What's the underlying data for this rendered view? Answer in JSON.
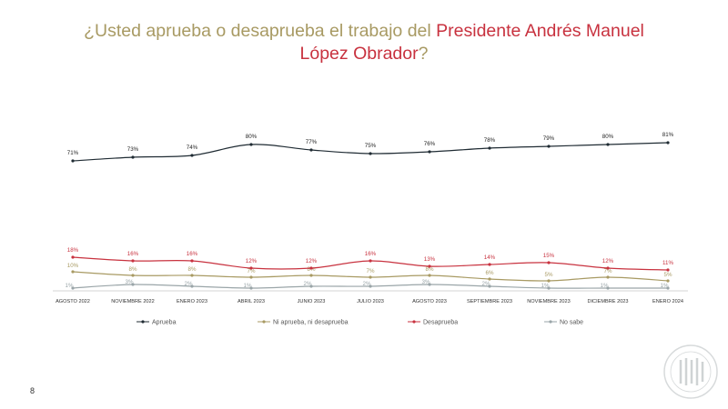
{
  "title": {
    "part1": "¿Usted aprueba o desaprueba el trabajo del ",
    "accent_line1": "Presidente Andrés Manuel",
    "accent_line2": "López Obrador",
    "end": "?"
  },
  "page_number": "8",
  "colors": {
    "title": "#a89a63",
    "accent": "#c8323f",
    "aprueba": "#1f2b33",
    "ni": "#a89a63",
    "desaprueba": "#c8323f",
    "nosabe": "#9aa5a8"
  },
  "chart_data": {
    "type": "line",
    "categories": [
      "AGOSTO 2022",
      "NOVIEMBRE 2022",
      "ENERO 2023",
      "ABRIL 2023",
      "JUNIO 2023",
      "JULIO 2023",
      "AGOSTO 2023",
      "SEPTIEMBRE 2023",
      "NOVIEMBRE 2023",
      "DICIEMBRE 2023",
      "ENERO 2024"
    ],
    "series": [
      {
        "name": "Aprueba",
        "key": "aprueba",
        "values": [
          71,
          73,
          74,
          80,
          77,
          75,
          76,
          78,
          79,
          80,
          81
        ],
        "labels": [
          "71%",
          "73%",
          "74%",
          "80%",
          "77%",
          "75%",
          "76%",
          "78%",
          "79%",
          "80%",
          "81%"
        ]
      },
      {
        "name": "Ni aprueba, ni desaprueba",
        "key": "ni",
        "values": [
          10,
          8,
          8,
          7,
          8,
          7,
          8,
          6,
          5,
          7,
          5
        ],
        "labels": [
          "10%",
          "8%",
          "8%",
          "7%",
          "8%",
          "7%",
          "8%",
          "6%",
          "5%",
          "7%",
          "5%"
        ]
      },
      {
        "name": "Desaprueba",
        "key": "desaprueba",
        "values": [
          18,
          16,
          16,
          12,
          12,
          16,
          13,
          14,
          15,
          12,
          11
        ],
        "labels": [
          "18%",
          "16%",
          "16%",
          "12%",
          "12%",
          "16%",
          "13%",
          "14%",
          "15%",
          "12%",
          "11%"
        ]
      },
      {
        "name": "No sabe",
        "key": "nosabe",
        "values": [
          1,
          3,
          2,
          1,
          2,
          2,
          3,
          2,
          1,
          1,
          1
        ],
        "labels": [
          "1%",
          "3%",
          "2%",
          "1%",
          "2%",
          "2%",
          "3%",
          "2%",
          "1%",
          "1%",
          "1%"
        ]
      }
    ],
    "grid": false,
    "legend_position": "bottom"
  }
}
